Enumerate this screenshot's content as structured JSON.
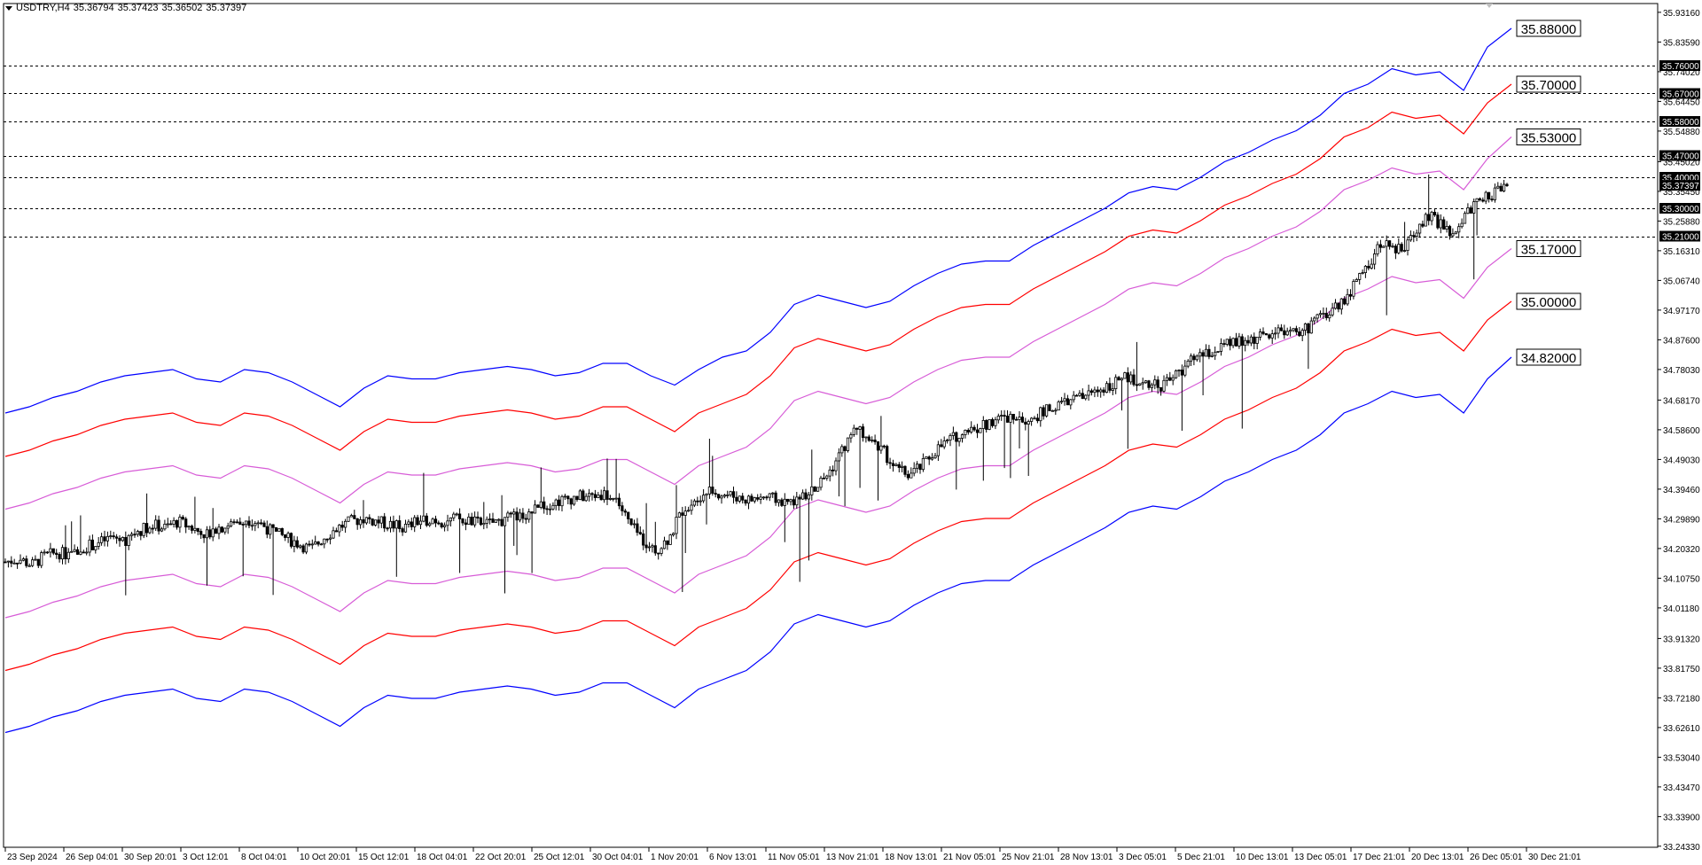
{
  "header": {
    "symbol": "USDTRY,H4",
    "open": "35.36794",
    "high": "35.37423",
    "low": "35.36502",
    "close": "35.37397"
  },
  "colors": {
    "band_outer": "#0000ff",
    "band_middle": "#ff0000",
    "band_inner": "#d75cd7",
    "candles": "#000000",
    "levels": "#000000",
    "background": "#ffffff"
  },
  "chart_data": {
    "type": "candlestick",
    "ylim": [
      33.24,
      35.96
    ],
    "grid": false,
    "y_ticks": [
      "35.93160",
      "35.83590",
      "35.74020",
      "35.64450",
      "35.54880",
      "35.45020",
      "35.35450",
      "35.25880",
      "35.16310",
      "35.06740",
      "34.97170",
      "34.87600",
      "34.78030",
      "34.68170",
      "34.58600",
      "34.49030",
      "34.39460",
      "34.29890",
      "34.20320",
      "34.10750",
      "34.01180",
      "33.91320",
      "33.81750",
      "33.72180",
      "33.62610",
      "33.53040",
      "33.43470",
      "33.33900",
      "33.24330"
    ],
    "x_ticks": [
      "23 Sep 2024",
      "26 Sep 04:01",
      "30 Sep 20:01",
      "3 Oct 12:01",
      "8 Oct 04:01",
      "10 Oct 20:01",
      "15 Oct 12:01",
      "18 Oct 04:01",
      "22 Oct 20:01",
      "25 Oct 12:01",
      "30 Oct 04:01",
      "1 Nov 20:01",
      "6 Nov 13:01",
      "11 Nov 05:01",
      "13 Nov 21:01",
      "18 Nov 13:01",
      "21 Nov 05:01",
      "25 Nov 21:01",
      "28 Nov 13:01",
      "3 Dec 05:01",
      "5 Dec 21:01",
      "10 Dec 13:01",
      "13 Dec 05:01",
      "17 Dec 21:01",
      "20 Dec 13:01",
      "26 Dec 05:01",
      "30 Dec 21:01"
    ],
    "horizontal_levels": [
      "35.76000",
      "35.67000",
      "35.58000",
      "35.47000",
      "35.40000",
      "35.30000",
      "35.21000"
    ],
    "current_price": "35.37397",
    "band_end_labels": [
      "35.88000",
      "35.70000",
      "35.53000",
      "35.17000",
      "35.00000",
      "34.82000"
    ],
    "close_path": [
      34.16,
      34.17,
      34.15,
      34.18,
      34.19,
      34.18,
      34.21,
      34.22,
      34.24,
      34.23,
      34.26,
      34.28,
      34.27,
      34.29,
      34.27,
      34.25,
      34.27,
      34.28,
      34.3,
      34.29,
      34.26,
      34.24,
      34.22,
      34.2,
      34.24,
      34.27,
      34.29,
      34.3,
      34.29,
      34.28,
      34.27,
      34.29,
      34.3,
      34.29,
      34.3,
      34.29,
      34.28,
      34.29,
      34.3,
      34.31,
      34.33,
      34.35,
      34.36,
      34.37,
      34.37,
      34.38,
      34.36,
      34.28,
      34.23,
      34.2,
      34.24,
      34.33,
      34.37,
      34.39,
      34.38,
      34.37,
      34.36,
      34.37,
      34.36,
      34.35,
      34.37,
      34.4,
      34.45,
      34.52,
      34.59,
      34.57,
      34.52,
      34.46,
      34.44,
      34.47,
      34.52,
      34.55,
      34.58,
      34.59,
      34.61,
      34.62,
      34.63,
      34.62,
      34.64,
      34.66,
      34.68,
      34.69,
      34.71,
      34.73,
      34.75,
      34.75,
      34.74,
      34.73,
      34.76,
      34.8,
      34.82,
      34.84,
      34.86,
      34.87,
      34.88,
      34.89,
      34.91,
      34.9,
      34.91,
      34.95,
      34.98,
      35.02,
      35.08,
      35.15,
      35.2,
      35.16,
      35.22,
      35.28,
      35.25,
      35.2,
      35.29,
      35.32,
      35.35,
      35.37
    ],
    "bands": [
      {
        "values": [
          34.64,
          34.66,
          34.69,
          34.71,
          34.74,
          34.76,
          34.77,
          34.78,
          34.75,
          34.74,
          34.78,
          34.77,
          34.74,
          34.7,
          34.66,
          34.72,
          34.76,
          34.75,
          34.75,
          34.77,
          34.78,
          34.79,
          34.78,
          34.76,
          34.77,
          34.8,
          34.8,
          34.76,
          34.73,
          34.78,
          34.82,
          34.84,
          34.9,
          34.99,
          35.02,
          35.0,
          34.98,
          35.0,
          35.05,
          35.09,
          35.12,
          35.13,
          35.13,
          35.18,
          35.22,
          35.26,
          35.3,
          35.35,
          35.37,
          35.36,
          35.4,
          35.45,
          35.48,
          35.52,
          35.55,
          35.6,
          35.67,
          35.7,
          35.75,
          35.73,
          35.74,
          35.68,
          35.82,
          35.88
        ]
      },
      {
        "values": [
          34.5,
          34.52,
          34.55,
          34.57,
          34.6,
          34.62,
          34.63,
          34.64,
          34.61,
          34.6,
          34.64,
          34.63,
          34.6,
          34.56,
          34.52,
          34.58,
          34.62,
          34.61,
          34.61,
          34.63,
          34.64,
          34.65,
          34.64,
          34.62,
          34.63,
          34.66,
          34.66,
          34.62,
          34.58,
          34.64,
          34.67,
          34.7,
          34.76,
          34.85,
          34.88,
          34.86,
          34.84,
          34.86,
          34.91,
          34.95,
          34.98,
          34.99,
          34.99,
          35.04,
          35.08,
          35.12,
          35.16,
          35.21,
          35.23,
          35.22,
          35.26,
          35.31,
          35.34,
          35.38,
          35.41,
          35.46,
          35.53,
          35.56,
          35.61,
          35.59,
          35.6,
          35.54,
          35.64,
          35.7
        ]
      },
      {
        "values": [
          34.33,
          34.35,
          34.38,
          34.4,
          34.43,
          34.45,
          34.46,
          34.47,
          34.44,
          34.43,
          34.47,
          34.46,
          34.43,
          34.39,
          34.35,
          34.41,
          34.45,
          34.44,
          34.44,
          34.46,
          34.47,
          34.48,
          34.47,
          34.45,
          34.46,
          34.49,
          34.49,
          34.45,
          34.41,
          34.47,
          34.5,
          34.53,
          34.59,
          34.68,
          34.71,
          34.69,
          34.67,
          34.69,
          34.74,
          34.78,
          34.81,
          34.82,
          34.82,
          34.87,
          34.91,
          34.95,
          34.99,
          35.04,
          35.06,
          35.05,
          35.09,
          35.14,
          35.17,
          35.21,
          35.24,
          35.29,
          35.36,
          35.39,
          35.43,
          35.41,
          35.42,
          35.36,
          35.46,
          35.53
        ]
      },
      {
        "values": [
          33.98,
          34.0,
          34.03,
          34.05,
          34.08,
          34.1,
          34.11,
          34.12,
          34.09,
          34.08,
          34.12,
          34.11,
          34.08,
          34.04,
          34.0,
          34.06,
          34.1,
          34.09,
          34.09,
          34.11,
          34.12,
          34.13,
          34.12,
          34.1,
          34.11,
          34.14,
          34.14,
          34.1,
          34.06,
          34.12,
          34.15,
          34.18,
          34.24,
          34.33,
          34.36,
          34.34,
          34.32,
          34.34,
          34.39,
          34.43,
          34.46,
          34.47,
          34.47,
          34.52,
          34.56,
          34.6,
          34.64,
          34.69,
          34.71,
          34.7,
          34.74,
          34.79,
          34.82,
          34.86,
          34.89,
          34.94,
          35.01,
          35.04,
          35.08,
          35.06,
          35.07,
          35.01,
          35.11,
          35.17
        ]
      },
      {
        "values": [
          33.81,
          33.83,
          33.86,
          33.88,
          33.91,
          33.93,
          33.94,
          33.95,
          33.92,
          33.91,
          33.95,
          33.94,
          33.91,
          33.87,
          33.83,
          33.89,
          33.93,
          33.92,
          33.92,
          33.94,
          33.95,
          33.96,
          33.95,
          33.93,
          33.94,
          33.97,
          33.97,
          33.93,
          33.89,
          33.95,
          33.98,
          34.01,
          34.07,
          34.16,
          34.19,
          34.17,
          34.15,
          34.17,
          34.22,
          34.26,
          34.29,
          34.3,
          34.3,
          34.35,
          34.39,
          34.43,
          34.47,
          34.52,
          34.54,
          34.53,
          34.57,
          34.62,
          34.65,
          34.69,
          34.72,
          34.77,
          34.84,
          34.87,
          34.91,
          34.89,
          34.9,
          34.84,
          34.94,
          35.0
        ]
      },
      {
        "values": [
          33.61,
          33.63,
          33.66,
          33.68,
          33.71,
          33.73,
          33.74,
          33.75,
          33.72,
          33.71,
          33.75,
          33.74,
          33.71,
          33.67,
          33.63,
          33.69,
          33.73,
          33.72,
          33.72,
          33.74,
          33.75,
          33.76,
          33.75,
          33.73,
          33.74,
          33.77,
          33.77,
          33.73,
          33.69,
          33.75,
          33.78,
          33.81,
          33.87,
          33.96,
          33.99,
          33.97,
          33.95,
          33.97,
          34.02,
          34.06,
          34.09,
          34.1,
          34.1,
          34.15,
          34.19,
          34.23,
          34.27,
          34.32,
          34.34,
          34.33,
          34.37,
          34.42,
          34.45,
          34.49,
          34.52,
          34.57,
          34.64,
          34.67,
          34.71,
          34.69,
          34.7,
          34.64,
          34.75,
          34.82
        ]
      }
    ]
  }
}
